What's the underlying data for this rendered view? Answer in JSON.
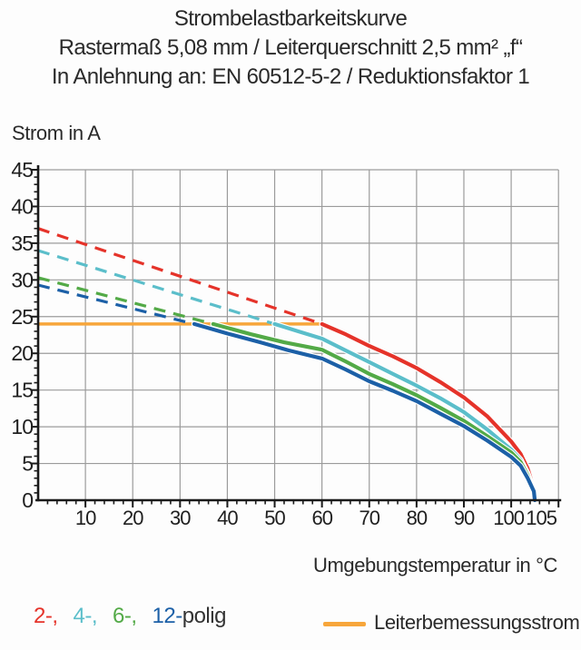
{
  "title": {
    "line1": "Strombelastbarkeitskurve",
    "line2": "Rastermaß 5,08 mm / Leiterquerschnitt 2,5 mm² „f“",
    "line3": "In Anlehnung an: EN 60512-5-2 / Reduktionsfaktor 1"
  },
  "legend": {
    "poles": [
      {
        "label": "2-,",
        "color": "#e5332a"
      },
      {
        "label": "4-,",
        "color": "#5bbeca"
      },
      {
        "label": "6-,",
        "color": "#53aa47"
      },
      {
        "label": "12-",
        "color": "#1c60a7"
      }
    ],
    "suffix": "polig"
  },
  "colors": {
    "grid": "#9b9b9b",
    "axis": "#1a1a1a",
    "tick_text": "#1f1f1f",
    "halo": "#ffffff"
  },
  "chart_data": {
    "type": "line",
    "title": "Strombelastbarkeitskurve",
    "xlabel": "Umgebungstemperatur in °C",
    "ylabel": "Strom in A",
    "xlim": [
      0,
      110
    ],
    "ylim": [
      0,
      45
    ],
    "grid": true,
    "x_tick_labels": [
      10,
      20,
      30,
      40,
      50,
      60,
      70,
      80,
      90,
      100,
      105
    ],
    "y_tick_labels": [
      0,
      5,
      10,
      15,
      20,
      25,
      30,
      35,
      40,
      45
    ],
    "x_major_step": 10,
    "x_minor_step": 2,
    "y_major_step": 5,
    "y_minor_step": 1,
    "series": [
      {
        "name": "2-polig",
        "color": "#e5332a",
        "dashed_points": [
          [
            0,
            37
          ],
          [
            60,
            24
          ]
        ],
        "solid_points": [
          [
            60,
            24
          ],
          [
            65,
            22.6
          ],
          [
            70,
            21
          ],
          [
            75,
            19.6
          ],
          [
            80,
            18
          ],
          [
            85,
            16.1
          ],
          [
            90,
            14
          ],
          [
            95,
            11.4
          ],
          [
            100,
            8
          ],
          [
            102,
            6.3
          ],
          [
            103.5,
            4.3
          ],
          [
            104.8,
            1.6
          ],
          [
            105,
            0
          ]
        ]
      },
      {
        "name": "4-polig",
        "color": "#5bbeca",
        "dashed_points": [
          [
            0,
            34
          ],
          [
            50,
            24
          ]
        ],
        "solid_points": [
          [
            50,
            24
          ],
          [
            55,
            23
          ],
          [
            60,
            22
          ],
          [
            65,
            20.4
          ],
          [
            70,
            18.8
          ],
          [
            75,
            17.2
          ],
          [
            80,
            15.6
          ],
          [
            85,
            13.9
          ],
          [
            90,
            12
          ],
          [
            95,
            9.6
          ],
          [
            100,
            6.9
          ],
          [
            102,
            5.5
          ],
          [
            103.5,
            3.6
          ],
          [
            104.8,
            1.5
          ],
          [
            105,
            0
          ]
        ]
      },
      {
        "name": "6-polig",
        "color": "#53aa47",
        "dashed_points": [
          [
            0,
            30.3
          ],
          [
            37,
            24
          ]
        ],
        "solid_points": [
          [
            37,
            24
          ],
          [
            45,
            22.6
          ],
          [
            52,
            21.5
          ],
          [
            60,
            20.5
          ],
          [
            65,
            18.9
          ],
          [
            70,
            17.2
          ],
          [
            75,
            15.8
          ],
          [
            80,
            14.3
          ],
          [
            85,
            12.6
          ],
          [
            90,
            10.8
          ],
          [
            95,
            8.7
          ],
          [
            100,
            6.5
          ],
          [
            102,
            5.2
          ],
          [
            103.5,
            3.4
          ],
          [
            104.7,
            1.4
          ],
          [
            105,
            0
          ]
        ]
      },
      {
        "name": "12-polig",
        "color": "#1c60a7",
        "dashed_points": [
          [
            0,
            29.3
          ],
          [
            33,
            24
          ]
        ],
        "solid_points": [
          [
            33,
            24
          ],
          [
            40,
            22.7
          ],
          [
            47,
            21.5
          ],
          [
            53,
            20.4
          ],
          [
            60,
            19.3
          ],
          [
            65,
            17.8
          ],
          [
            70,
            16.2
          ],
          [
            75,
            14.9
          ],
          [
            80,
            13.5
          ],
          [
            85,
            11.8
          ],
          [
            90,
            10.1
          ],
          [
            95,
            8.1
          ],
          [
            100,
            5.9
          ],
          [
            102,
            4.7
          ],
          [
            103.5,
            3
          ],
          [
            104.8,
            1.2
          ],
          [
            105,
            0
          ]
        ]
      }
    ],
    "reference_line": {
      "name": "Leiterbemessungsstrom",
      "color": "#f7a63b",
      "value": 24,
      "x_range": [
        0,
        60
      ]
    }
  }
}
